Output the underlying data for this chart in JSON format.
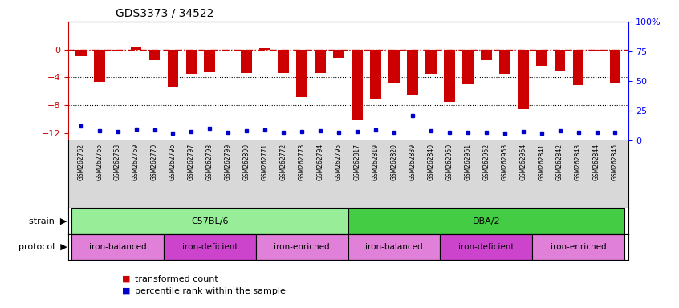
{
  "title": "GDS3373 / 34522",
  "samples": [
    "GSM262762",
    "GSM262765",
    "GSM262768",
    "GSM262769",
    "GSM262770",
    "GSM262796",
    "GSM262797",
    "GSM262798",
    "GSM262799",
    "GSM262800",
    "GSM262771",
    "GSM262772",
    "GSM262773",
    "GSM262794",
    "GSM262795",
    "GSM262817",
    "GSM262819",
    "GSM262820",
    "GSM262839",
    "GSM262840",
    "GSM262950",
    "GSM262951",
    "GSM262952",
    "GSM262953",
    "GSM262954",
    "GSM262841",
    "GSM262842",
    "GSM262843",
    "GSM262844",
    "GSM262845"
  ],
  "bar_values": [
    -1.0,
    -4.6,
    -0.1,
    0.4,
    -1.5,
    -5.3,
    -3.5,
    -3.3,
    -0.05,
    -3.4,
    0.2,
    -3.4,
    -6.8,
    -3.4,
    -1.2,
    -10.2,
    -7.0,
    -4.8,
    -6.5,
    -3.5,
    -7.5,
    -5.0,
    -1.5,
    -3.5,
    -8.5,
    -2.3,
    -3.0,
    -5.1,
    -0.1,
    -4.8
  ],
  "percentile_values": [
    -11.0,
    -11.7,
    -11.8,
    -11.4,
    -11.5,
    -12.0,
    -11.8,
    -11.3,
    -11.9,
    -11.6,
    -11.5,
    -11.9,
    -11.8,
    -11.6,
    -11.9,
    -11.8,
    -11.5,
    -11.9,
    -9.5,
    -11.7,
    -11.9,
    -11.9,
    -11.9,
    -12.0,
    -11.8,
    -12.0,
    -11.7,
    -11.9,
    -11.9,
    -11.9
  ],
  "bar_color": "#cc0000",
  "percentile_color": "#0000cc",
  "dashed_line_color": "#cc0000",
  "ylim_left": [
    -13.0,
    4.0
  ],
  "yticks_left": [
    0,
    -4,
    -8,
    -12
  ],
  "yticks_right": [
    0,
    25,
    50,
    75,
    100
  ],
  "right_y_labels": [
    "0",
    "25",
    "50",
    "75",
    "100%"
  ],
  "strain_groups": [
    {
      "label": "C57BL/6",
      "start": 0,
      "end": 15,
      "color": "#98ee98"
    },
    {
      "label": "DBA/2",
      "start": 15,
      "end": 30,
      "color": "#44cc44"
    }
  ],
  "protocol_groups": [
    {
      "label": "iron-balanced",
      "start": 0,
      "end": 5,
      "color": "#e080d0"
    },
    {
      "label": "iron-deficient",
      "start": 5,
      "end": 10,
      "color": "#cc44cc"
    },
    {
      "label": "iron-enriched",
      "start": 10,
      "end": 15,
      "color": "#e080d0"
    },
    {
      "label": "iron-balanced",
      "start": 15,
      "end": 20,
      "color": "#e080d0"
    },
    {
      "label": "iron-deficient",
      "start": 20,
      "end": 25,
      "color": "#cc44cc"
    },
    {
      "label": "iron-enriched",
      "start": 25,
      "end": 30,
      "color": "#e080d0"
    }
  ],
  "legend_entries": [
    {
      "label": "transformed count",
      "color": "#cc0000"
    },
    {
      "label": "percentile rank within the sample",
      "color": "#0000cc"
    }
  ]
}
